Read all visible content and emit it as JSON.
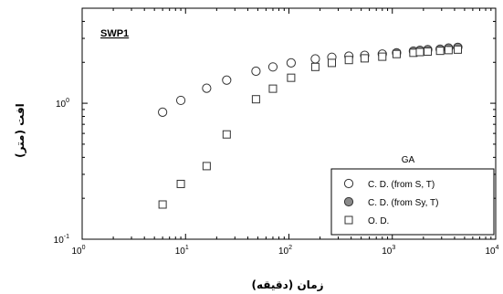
{
  "chart_data": {
    "type": "scatter",
    "title": "SWP1",
    "xlabel": "زمان (دقیقه)",
    "ylabel": "افت (متر)",
    "x_scale": "log",
    "y_scale": "log",
    "xlim": [
      1,
      10000
    ],
    "ylim": [
      0.1,
      5
    ],
    "x_tick_labels": [
      {
        "base": "10",
        "exp": "0"
      },
      {
        "base": "10",
        "exp": "1"
      },
      {
        "base": "10",
        "exp": "2"
      },
      {
        "base": "10",
        "exp": "3"
      },
      {
        "base": "10",
        "exp": "4"
      }
    ],
    "y_tick_labels": [
      {
        "base": "10",
        "exp": "-1"
      },
      {
        "base": "10",
        "exp": "0"
      }
    ],
    "grid": false,
    "legend": {
      "placement": "bottom-right",
      "title": "GA",
      "entries": [
        {
          "label": "C. D. (from S, T)",
          "marker": "circle-open"
        },
        {
          "label": "C. D. (from Sy, T)",
          "marker": "circle-filled"
        },
        {
          "label": "O. D.",
          "marker": "square-open"
        }
      ]
    },
    "series": [
      {
        "name": "C. D. (from S, T)",
        "marker": "circle-open",
        "points": [
          [
            6,
            0.86
          ],
          [
            9,
            1.05
          ],
          [
            16,
            1.29
          ],
          [
            25,
            1.48
          ],
          [
            48,
            1.72
          ],
          [
            70,
            1.85
          ],
          [
            105,
            1.98
          ],
          [
            180,
            2.12
          ],
          [
            260,
            2.18
          ],
          [
            380,
            2.22
          ],
          [
            540,
            2.25
          ],
          [
            800,
            2.3
          ]
        ]
      },
      {
        "name": "C. D. (from Sy, T)",
        "marker": "circle-filled",
        "points": [
          [
            1100,
            2.35
          ],
          [
            1600,
            2.42
          ],
          [
            1850,
            2.45
          ],
          [
            2200,
            2.48
          ],
          [
            2900,
            2.5
          ],
          [
            3500,
            2.55
          ],
          [
            4300,
            2.58
          ]
        ]
      },
      {
        "name": "O. D.",
        "marker": "square-open",
        "points": [
          [
            6,
            0.18
          ],
          [
            9,
            0.255
          ],
          [
            16,
            0.345
          ],
          [
            25,
            0.59
          ],
          [
            48,
            1.07
          ],
          [
            70,
            1.28
          ],
          [
            105,
            1.54
          ],
          [
            180,
            1.85
          ],
          [
            260,
            1.98
          ],
          [
            380,
            2.08
          ],
          [
            540,
            2.14
          ],
          [
            800,
            2.2
          ],
          [
            1100,
            2.3
          ],
          [
            1600,
            2.35
          ],
          [
            1850,
            2.38
          ],
          [
            2200,
            2.4
          ],
          [
            2900,
            2.43
          ],
          [
            3500,
            2.46
          ],
          [
            4300,
            2.48
          ]
        ]
      }
    ],
    "colors": {
      "marker_stroke": "#333333",
      "filled_marker": "#8a8a8a",
      "axis": "#000000"
    }
  }
}
